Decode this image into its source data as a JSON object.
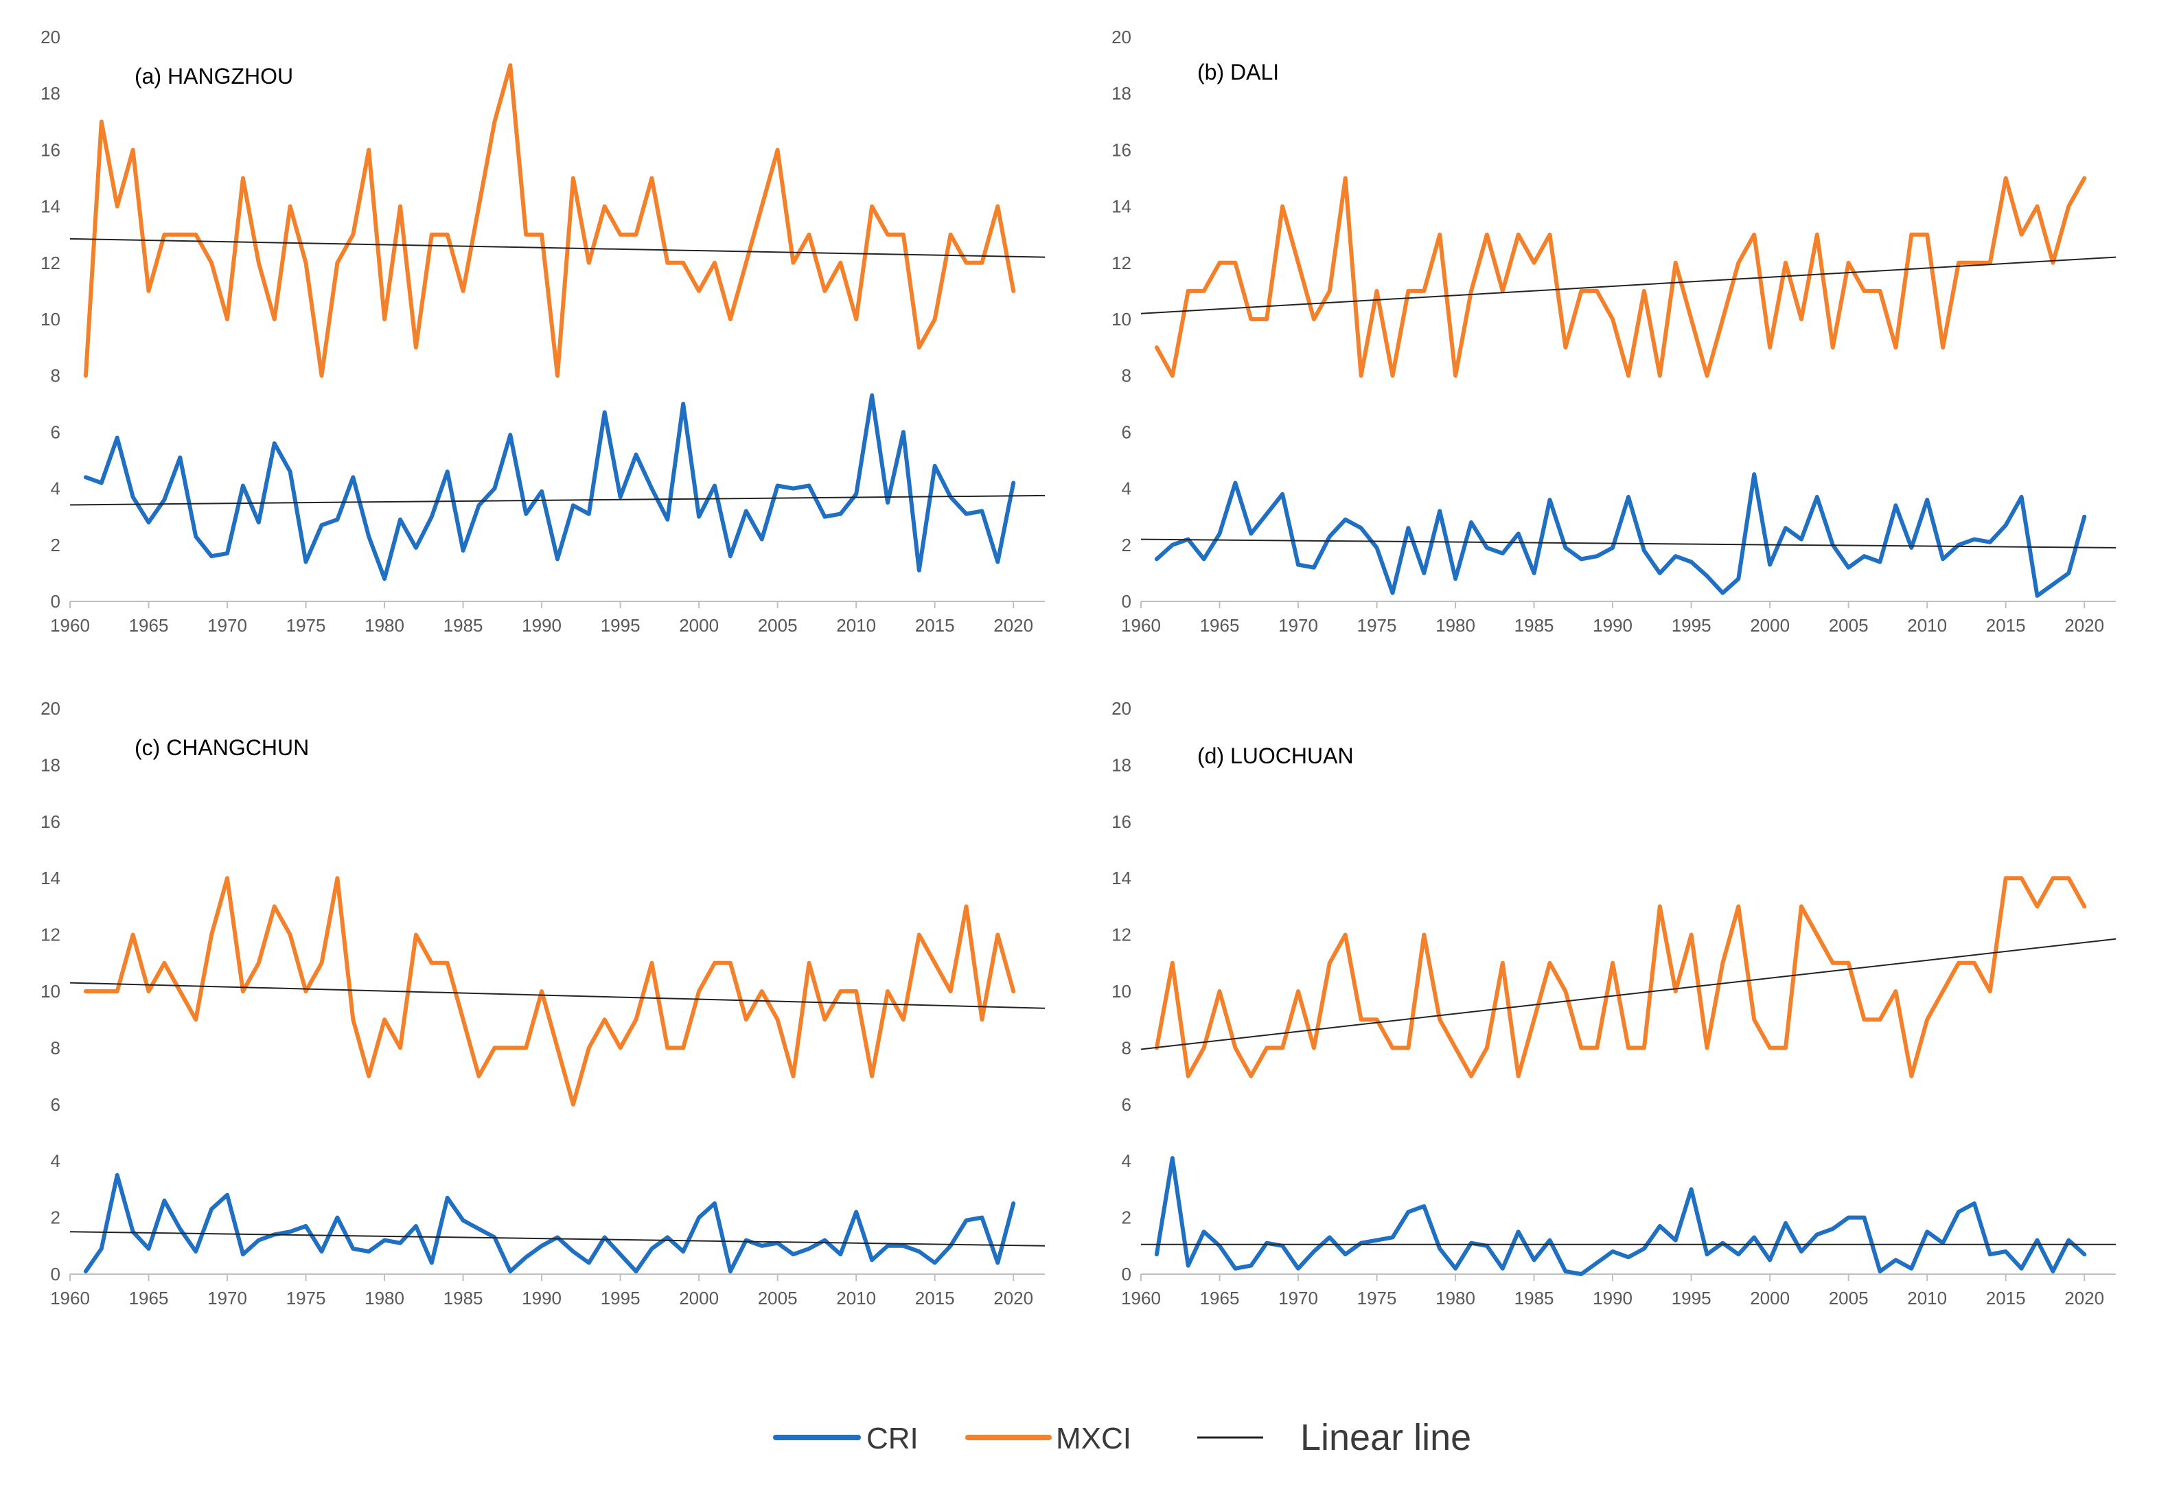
{
  "colors": {
    "cri": "#1f6fc2",
    "mxci": "#f5802a",
    "linear": "#222222",
    "axis": "#bfbfbf",
    "tick_text": "#595959"
  },
  "legend": {
    "cri": "CRI",
    "mxci": "MXCI",
    "linear": "Linear line"
  },
  "chart_data": [
    {
      "type": "line",
      "title": "(a)   HANGZHOU",
      "x_ticks": [
        1960,
        1965,
        1970,
        1975,
        1980,
        1985,
        1990,
        1995,
        2000,
        2005,
        2010,
        2015,
        2020
      ],
      "y_ticks": [
        0,
        2,
        4,
        6,
        8,
        10,
        12,
        14,
        16,
        18,
        20
      ],
      "xlim": [
        1960,
        2022
      ],
      "ylim": [
        0,
        20
      ],
      "x": [
        1961,
        1962,
        1963,
        1964,
        1965,
        1966,
        1967,
        1968,
        1969,
        1970,
        1971,
        1972,
        1973,
        1974,
        1975,
        1976,
        1977,
        1978,
        1979,
        1980,
        1981,
        1982,
        1983,
        1984,
        1985,
        1986,
        1987,
        1988,
        1989,
        1990,
        1991,
        1992,
        1993,
        1994,
        1995,
        1996,
        1997,
        1998,
        1999,
        2000,
        2001,
        2002,
        2003,
        2004,
        2005,
        2006,
        2007,
        2008,
        2009,
        2010,
        2011,
        2012,
        2013,
        2014,
        2015,
        2016,
        2017,
        2018,
        2019,
        2020
      ],
      "series": [
        {
          "name": "MXCI",
          "values": [
            8,
            17,
            14,
            16,
            11,
            13,
            13,
            13,
            12,
            10,
            15,
            12,
            10,
            14,
            12,
            8,
            12,
            13,
            16,
            10,
            14,
            9,
            13,
            13,
            11,
            14,
            17,
            19,
            13,
            13,
            8,
            15,
            12,
            14,
            13,
            13,
            15,
            12,
            12,
            11,
            12,
            10,
            12,
            14,
            16,
            12,
            13,
            11,
            12,
            10,
            14,
            13,
            13,
            9,
            10,
            13,
            12,
            12,
            14,
            11
          ]
        },
        {
          "name": "CRI",
          "values": [
            4.4,
            4.2,
            5.8,
            3.7,
            2.8,
            3.6,
            5.1,
            2.3,
            1.6,
            1.7,
            4.1,
            2.8,
            5.6,
            4.6,
            1.4,
            2.7,
            2.9,
            4.4,
            2.3,
            0.8,
            2.9,
            1.9,
            3.0,
            4.6,
            1.8,
            3.4,
            4.0,
            5.9,
            3.1,
            3.9,
            1.5,
            3.4,
            3.1,
            6.7,
            3.7,
            5.2,
            4.0,
            2.9,
            7.0,
            3.0,
            4.1,
            1.6,
            3.2,
            2.2,
            4.1,
            4.0,
            4.1,
            3.0,
            3.1,
            3.8,
            7.3,
            3.5,
            6.0,
            1.1,
            4.8,
            3.7,
            3.1,
            3.2,
            1.4,
            4.2
          ]
        }
      ],
      "trends": [
        {
          "name": "MXCI linear",
          "start": [
            1960,
            12.85
          ],
          "end": [
            2022,
            12.2
          ]
        },
        {
          "name": "CRI linear",
          "start": [
            1960,
            3.42
          ],
          "end": [
            2022,
            3.75
          ]
        }
      ]
    },
    {
      "type": "line",
      "title": "(b)   DALI",
      "x_ticks": [
        1960,
        1965,
        1970,
        1975,
        1980,
        1985,
        1990,
        1995,
        2000,
        2005,
        2010,
        2015,
        2020
      ],
      "y_ticks": [
        0,
        2,
        4,
        6,
        8,
        10,
        12,
        14,
        16,
        18,
        20
      ],
      "xlim": [
        1960,
        2022
      ],
      "ylim": [
        0,
        20
      ],
      "x": [
        1961,
        1962,
        1963,
        1964,
        1965,
        1966,
        1967,
        1968,
        1969,
        1970,
        1971,
        1972,
        1973,
        1974,
        1975,
        1976,
        1977,
        1978,
        1979,
        1980,
        1981,
        1982,
        1983,
        1984,
        1985,
        1986,
        1987,
        1988,
        1989,
        1990,
        1991,
        1992,
        1993,
        1994,
        1995,
        1996,
        1997,
        1998,
        1999,
        2000,
        2001,
        2002,
        2003,
        2004,
        2005,
        2006,
        2007,
        2008,
        2009,
        2010,
        2011,
        2012,
        2013,
        2014,
        2015,
        2016,
        2017,
        2018,
        2019,
        2020
      ],
      "series": [
        {
          "name": "MXCI",
          "values": [
            9,
            8,
            11,
            11,
            12,
            12,
            10,
            10,
            14,
            12,
            10,
            11,
            15,
            8,
            11,
            8,
            11,
            11,
            13,
            8,
            11,
            13,
            11,
            13,
            12,
            13,
            9,
            11,
            11,
            10,
            8,
            11,
            8,
            12,
            10,
            8,
            10,
            12,
            13,
            9,
            12,
            10,
            13,
            9,
            12,
            11,
            11,
            9,
            13,
            13,
            9,
            12,
            12,
            12,
            15,
            13,
            14,
            12,
            14,
            15
          ]
        },
        {
          "name": "CRI",
          "values": [
            1.5,
            2.0,
            2.2,
            1.5,
            2.4,
            4.2,
            2.4,
            3.1,
            3.8,
            1.3,
            1.2,
            2.3,
            2.9,
            2.6,
            1.9,
            0.3,
            2.6,
            1.0,
            3.2,
            0.8,
            2.8,
            1.9,
            1.7,
            2.4,
            1.0,
            3.6,
            1.9,
            1.5,
            1.6,
            1.9,
            3.7,
            1.8,
            1.0,
            1.6,
            1.4,
            0.9,
            0.3,
            0.8,
            4.5,
            1.3,
            2.6,
            2.2,
            3.7,
            2.0,
            1.2,
            1.6,
            1.4,
            3.4,
            1.9,
            3.6,
            1.5,
            2.0,
            2.2,
            2.1,
            2.7,
            3.7,
            0.2,
            0.6,
            1.0,
            3.0
          ]
        }
      ],
      "trends": [
        {
          "name": "MXCI linear",
          "start": [
            1960,
            10.2
          ],
          "end": [
            2022,
            12.2
          ]
        },
        {
          "name": "CRI linear",
          "start": [
            1960,
            2.2
          ],
          "end": [
            2022,
            1.9
          ]
        }
      ]
    },
    {
      "type": "line",
      "title": "(c)   CHANGCHUN",
      "x_ticks": [
        1960,
        1965,
        1970,
        1975,
        1980,
        1985,
        1990,
        1995,
        2000,
        2005,
        2010,
        2015,
        2020
      ],
      "y_ticks": [
        0,
        2,
        4,
        6,
        8,
        10,
        12,
        14,
        16,
        18,
        20
      ],
      "xlim": [
        1960,
        2022
      ],
      "ylim": [
        0,
        20
      ],
      "x": [
        1961,
        1962,
        1963,
        1964,
        1965,
        1966,
        1967,
        1968,
        1969,
        1970,
        1971,
        1972,
        1973,
        1974,
        1975,
        1976,
        1977,
        1978,
        1979,
        1980,
        1981,
        1982,
        1983,
        1984,
        1985,
        1986,
        1987,
        1988,
        1989,
        1990,
        1991,
        1992,
        1993,
        1994,
        1995,
        1996,
        1997,
        1998,
        1999,
        2000,
        2001,
        2002,
        2003,
        2004,
        2005,
        2006,
        2007,
        2008,
        2009,
        2010,
        2011,
        2012,
        2013,
        2014,
        2015,
        2016,
        2017,
        2018,
        2019,
        2020
      ],
      "series": [
        {
          "name": "MXCI",
          "values": [
            10,
            10,
            10,
            12,
            10,
            11,
            10,
            9,
            12,
            14,
            10,
            11,
            13,
            12,
            10,
            11,
            14,
            9,
            7,
            9,
            8,
            12,
            11,
            11,
            9,
            7,
            8,
            8,
            8,
            10,
            8,
            6,
            8,
            9,
            8,
            9,
            11,
            8,
            8,
            10,
            11,
            11,
            9,
            10,
            9,
            7,
            11,
            9,
            10,
            10,
            7,
            10,
            9,
            12,
            11,
            10,
            13,
            9,
            12,
            10
          ]
        },
        {
          "name": "CRI",
          "values": [
            0.1,
            0.9,
            3.5,
            1.5,
            0.9,
            2.6,
            1.6,
            0.8,
            2.3,
            2.8,
            0.7,
            1.2,
            1.4,
            1.5,
            1.7,
            0.8,
            2.0,
            0.9,
            0.8,
            1.2,
            1.1,
            1.7,
            0.4,
            2.7,
            1.9,
            1.6,
            1.3,
            0.1,
            0.6,
            1.0,
            1.3,
            0.8,
            0.4,
            1.3,
            0.7,
            0.1,
            0.9,
            1.3,
            0.8,
            2.0,
            2.5,
            0.1,
            1.2,
            1.0,
            1.1,
            0.7,
            0.9,
            1.2,
            0.7,
            2.2,
            0.5,
            1.0,
            1.0,
            0.8,
            0.4,
            1.0,
            1.9,
            2.0,
            0.4,
            2.5
          ]
        }
      ],
      "trends": [
        {
          "name": "MXCI linear",
          "start": [
            1960,
            10.3
          ],
          "end": [
            2022,
            9.4
          ]
        },
        {
          "name": "CRI linear",
          "start": [
            1960,
            1.5
          ],
          "end": [
            2022,
            1.0
          ]
        }
      ]
    },
    {
      "type": "line",
      "title": "(d)   LUOCHUAN",
      "x_ticks": [
        1960,
        1965,
        1970,
        1975,
        1980,
        1985,
        1990,
        1995,
        2000,
        2005,
        2010,
        2015,
        2020
      ],
      "y_ticks": [
        0,
        2,
        4,
        6,
        8,
        10,
        12,
        14,
        16,
        18,
        20
      ],
      "xlim": [
        1960,
        2022
      ],
      "ylim": [
        0,
        20
      ],
      "x": [
        1961,
        1962,
        1963,
        1964,
        1965,
        1966,
        1967,
        1968,
        1969,
        1970,
        1971,
        1972,
        1973,
        1974,
        1975,
        1976,
        1977,
        1978,
        1979,
        1980,
        1981,
        1982,
        1983,
        1984,
        1985,
        1986,
        1987,
        1988,
        1989,
        1990,
        1991,
        1992,
        1993,
        1994,
        1995,
        1996,
        1997,
        1998,
        1999,
        2000,
        2001,
        2002,
        2003,
        2004,
        2005,
        2006,
        2007,
        2008,
        2009,
        2010,
        2011,
        2012,
        2013,
        2014,
        2015,
        2016,
        2017,
        2018,
        2019,
        2020
      ],
      "series": [
        {
          "name": "MXCI",
          "values": [
            8,
            11,
            7,
            8,
            10,
            8,
            7,
            8,
            8,
            10,
            8,
            11,
            12,
            9,
            9,
            8,
            8,
            12,
            9,
            8,
            7,
            8,
            11,
            7,
            9,
            11,
            10,
            8,
            8,
            11,
            8,
            8,
            13,
            10,
            12,
            8,
            11,
            13,
            9,
            8,
            8,
            13,
            12,
            11,
            11,
            9,
            9,
            10,
            7,
            9,
            10,
            11,
            11,
            10,
            14,
            14,
            13,
            14,
            14,
            13
          ]
        },
        {
          "name": "CRI",
          "values": [
            0.7,
            4.1,
            0.3,
            1.5,
            1.0,
            0.2,
            0.3,
            1.1,
            1.0,
            0.2,
            0.8,
            1.3,
            0.7,
            1.1,
            1.2,
            1.3,
            2.2,
            2.4,
            0.9,
            0.2,
            1.1,
            1.0,
            0.2,
            1.5,
            0.5,
            1.2,
            0.1,
            0.0,
            0.4,
            0.8,
            0.6,
            0.9,
            1.7,
            1.2,
            3.0,
            0.7,
            1.1,
            0.7,
            1.3,
            0.5,
            1.8,
            0.8,
            1.4,
            1.6,
            2.0,
            2.0,
            0.1,
            0.5,
            0.2,
            1.5,
            1.1,
            2.2,
            2.5,
            0.7,
            0.8,
            0.2,
            1.2,
            0.1,
            1.2,
            0.7
          ]
        }
      ],
      "trends": [
        {
          "name": "MXCI linear",
          "start": [
            1960,
            7.95
          ],
          "end": [
            2022,
            11.85
          ]
        },
        {
          "name": "CRI linear",
          "start": [
            1960,
            1.05
          ],
          "end": [
            2022,
            1.05
          ]
        }
      ]
    }
  ]
}
